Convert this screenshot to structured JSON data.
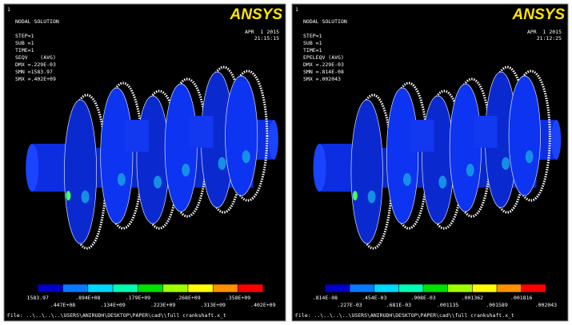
{
  "panels": [
    {
      "window_number": "1",
      "title": "NODAL SOLUTION",
      "info": [
        "STEP=1",
        "SUB =1",
        "TIME=1",
        "SEQV    (AVG)",
        "DMX =.229E-03",
        "SMN =1583.97",
        "SMX =.402E+09"
      ],
      "date": "APR  1 2015",
      "time": "21:15:15",
      "logo": "ANSYS",
      "legend_top": [
        "1583.97",
        ".894E+08",
        ".179E+09",
        ".268E+09",
        ".358E+09"
      ],
      "legend_bottom": [
        ".447E+08",
        ".134E+09",
        ".223E+09",
        ".313E+09",
        ".402E+09"
      ],
      "file": "File: ..\\..\\..\\..\\USERS\\ANIRUDH\\DESKTOP\\PAPER\\cad\\\\full crankshaft.x_t"
    },
    {
      "window_number": "1",
      "title": "NODAL SOLUTION",
      "info": [
        "STEP=1",
        "SUB =1",
        "TIME=1",
        "EPELEQV (AVG)",
        "DMX =.229E-03",
        "SMN =.814E-08",
        "SMX =.002043"
      ],
      "date": "APR  1 2015",
      "time": "21:12:25",
      "logo": "ANSYS",
      "legend_top": [
        ".814E-08",
        ".454E-03",
        ".908E-03",
        ".001362",
        ".001816"
      ],
      "legend_bottom": [
        ".227E-03",
        ".681E-03",
        ".001135",
        ".001589",
        ".002043"
      ],
      "file": "File: ..\\..\\..\\..\\USERS\\ANIRUDH\\DESKTOP\\PAPER\\cad\\\\full crankshaft.x_t"
    }
  ]
}
